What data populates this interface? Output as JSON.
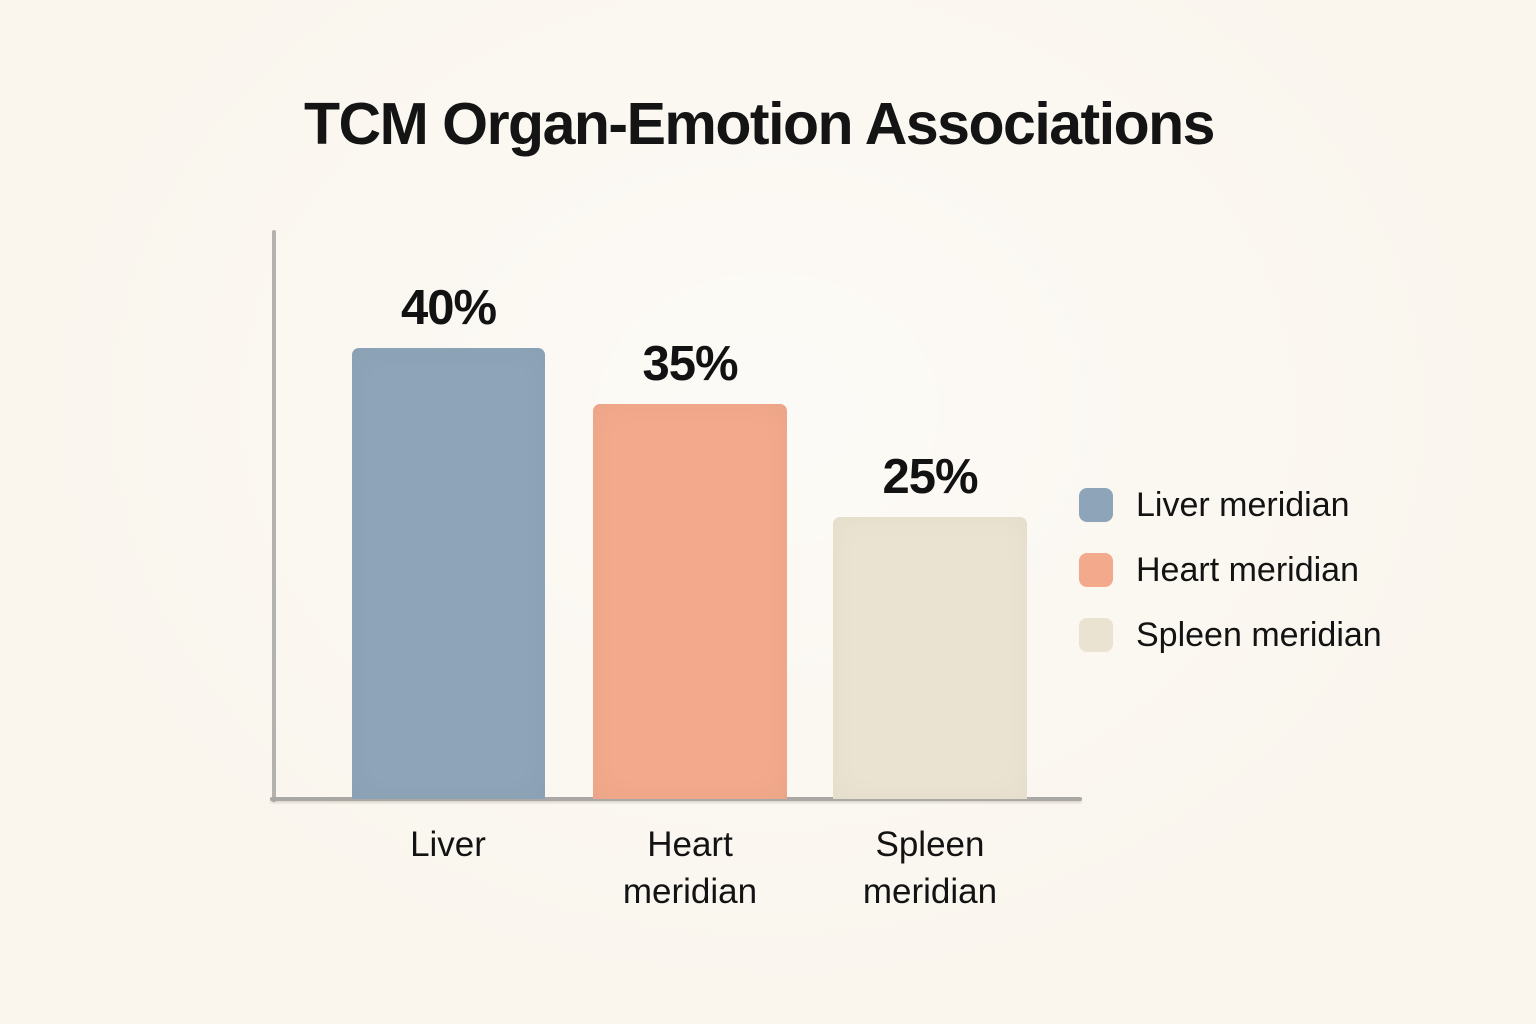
{
  "title": "TCM Organ-Emotion Associations",
  "colors": {
    "background": "#faf6ee",
    "axis": "#adaca8",
    "text": "#141414",
    "liver": "#8ea5b9",
    "heart": "#f2a98c",
    "spleen": "#ebe3d1"
  },
  "chart_data": {
    "type": "bar",
    "title": "TCM Organ-Emotion Associations",
    "categories": [
      "Liver",
      "Heart meridian",
      "Spleen meridian"
    ],
    "values": [
      40,
      35,
      25
    ],
    "value_labels": [
      "40%",
      "35%",
      "25%"
    ],
    "bar_colors": [
      "#8ea5b9",
      "#f2a98c",
      "#ebe3d1"
    ],
    "xlabel": "",
    "ylabel": "",
    "ylim": [
      0,
      50
    ],
    "grid": false,
    "legend_position": "right"
  },
  "legend": {
    "items": [
      {
        "label": "Liver meridian",
        "color": "#8ea5b9"
      },
      {
        "label": "Heart meridian",
        "color": "#f2a98c"
      },
      {
        "label": "Spleen meridian",
        "color": "#ebe3d1"
      }
    ]
  }
}
